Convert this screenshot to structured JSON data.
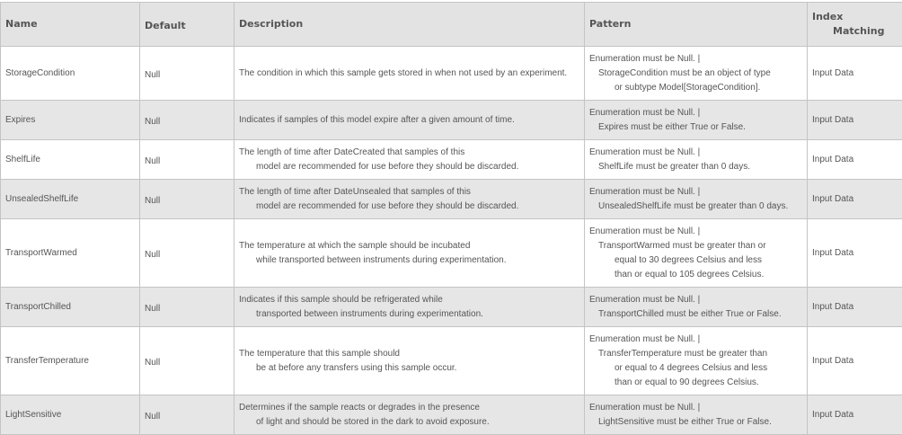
{
  "headers": {
    "name": "Name",
    "default": "Default",
    "description": "Description",
    "pattern": "Pattern",
    "index_line1": "Index",
    "index_line2": "Matching"
  },
  "rows": [
    {
      "name": "StorageCondition",
      "default": "Null",
      "description": [
        "The condition in which this sample gets stored in when not used by an experiment."
      ],
      "pattern": [
        "Enumeration must be Null.  |",
        "StorageCondition must be an object of type",
        "or subtype Model[StorageCondition]."
      ],
      "index": "Input Data",
      "height": 60
    },
    {
      "name": "Expires",
      "default": "Null",
      "description": [
        "Indicates if samples of this model expire after a given amount of time."
      ],
      "pattern": [
        "Enumeration must be Null.  |",
        "Expires must be either True or False."
      ],
      "index": "Input Data",
      "height": 44
    },
    {
      "name": "ShelfLife",
      "default": "Null",
      "description": [
        "The length of time after DateCreated that samples of this",
        "model are recommended for use before they should be discarded."
      ],
      "pattern": [
        "Enumeration must be Null.  |",
        "ShelfLife must be greater than 0 days."
      ],
      "index": "Input Data",
      "height": 44
    },
    {
      "name": "UnsealedShelfLife",
      "default": "Null",
      "description": [
        "The length of time after DateUnsealed that samples of this",
        "model are recommended for use before they should be discarded."
      ],
      "pattern": [
        "Enumeration must be Null.  |",
        "UnsealedShelfLife must be greater than 0 days."
      ],
      "index": "Input Data",
      "height": 44
    },
    {
      "name": "TransportWarmed",
      "default": "Null",
      "description": [
        "The temperature at which the sample should be incubated",
        "while transported between instruments during experimentation."
      ],
      "pattern": [
        "Enumeration must be Null.  |",
        "TransportWarmed must be greater than or",
        "equal to 30 degrees Celsius and less",
        "than or equal to 105 degrees Celsius."
      ],
      "index": "Input Data",
      "height": 76
    },
    {
      "name": "TransportChilled",
      "default": "Null",
      "description": [
        "Indicates if this sample should be refrigerated while",
        "transported between instruments during experimentation."
      ],
      "pattern": [
        "Enumeration must be Null.  |",
        "TransportChilled must be either True or False."
      ],
      "index": "Input Data",
      "height": 44
    },
    {
      "name": "TransferTemperature",
      "default": "Null",
      "description": [
        "The temperature that this sample should",
        "be at before any transfers using this sample occur."
      ],
      "pattern": [
        "Enumeration must be Null.  |",
        "TransferTemperature must be greater than",
        "or equal to 4 degrees Celsius and less",
        "than or equal to 90 degrees Celsius."
      ],
      "index": "Input Data",
      "height": 76
    },
    {
      "name": "LightSensitive",
      "default": "Null",
      "description": [
        "Determines if the sample reacts or degrades in the presence",
        "of light and should be stored in the dark to avoid exposure."
      ],
      "pattern": [
        "Enumeration must be Null.  |",
        "LightSensitive must be either True or False."
      ],
      "index": "Input Data",
      "height": 44
    }
  ]
}
